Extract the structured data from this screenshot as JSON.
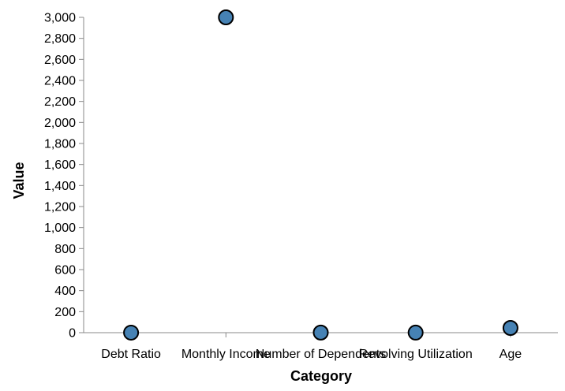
{
  "chart_data": {
    "type": "scatter",
    "categories": [
      "Debt Ratio",
      "Monthly Income",
      "Number of Dependents",
      "Revolving Utilization",
      "Age"
    ],
    "values": [
      0.35,
      3000,
      1,
      0.5,
      45
    ],
    "xlabel": "Category",
    "ylabel": "Value",
    "ylim": [
      0,
      3000
    ],
    "yticks": [
      0,
      200,
      400,
      600,
      800,
      1000,
      1200,
      1400,
      1600,
      1800,
      2000,
      2200,
      2400,
      2600,
      2800,
      3000
    ],
    "grid": false,
    "colors": {
      "point": "#4682b4",
      "point_stroke": "#000000",
      "axis": "#888888"
    }
  }
}
